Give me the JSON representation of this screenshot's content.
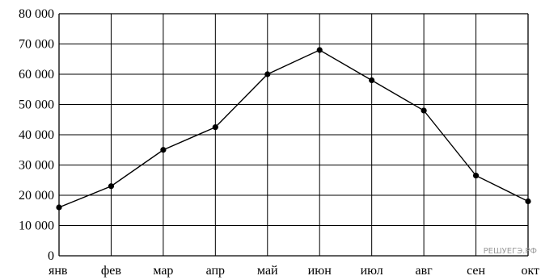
{
  "chart_data": {
    "type": "line",
    "title": "",
    "xlabel": "",
    "ylabel": "",
    "categories": [
      "янв",
      "фев",
      "мар",
      "апр",
      "май",
      "июн",
      "июл",
      "авг",
      "сен",
      "окт"
    ],
    "series": [
      {
        "values": [
          16000,
          23000,
          35000,
          42500,
          60000,
          68000,
          58000,
          48000,
          26500,
          18000
        ]
      }
    ],
    "ylim": [
      0,
      80000
    ],
    "yticks": [
      0,
      10000,
      20000,
      30000,
      40000,
      50000,
      60000,
      70000,
      80000
    ],
    "ytick_labels": [
      "0",
      "10 000",
      "20 000",
      "30 000",
      "40 000",
      "50 000",
      "60 000",
      "70 000",
      "80 000"
    ],
    "grid": true,
    "line_color": "#000000",
    "marker_color": "#000000"
  },
  "watermark": "РЕШУЕГЭ.РФ"
}
